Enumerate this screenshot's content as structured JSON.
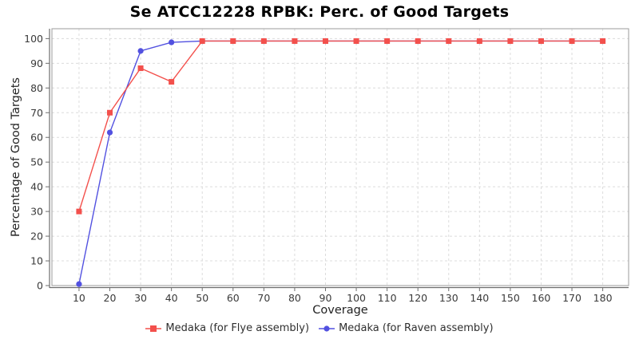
{
  "page": {
    "background": "#ffffff"
  },
  "palette": {
    "grid": "#dcdcdc",
    "border": "#9b9b9b",
    "axis": "#6e6e6e",
    "tick_text": "#3a3a3a",
    "title_text": "#000000",
    "axis_label_text": "#222222",
    "legend_text": "#2f2f2f"
  },
  "chart_data": {
    "type": "line",
    "title": "Se ATCC12228 RPBK: Perc. of Good Targets",
    "xlabel": "Coverage",
    "ylabel": "Percentage of Good Targets",
    "x": [
      10,
      20,
      30,
      40,
      50,
      60,
      70,
      80,
      90,
      100,
      110,
      120,
      130,
      140,
      150,
      160,
      170,
      180
    ],
    "series": [
      {
        "name": "Medaka (for Flye assembly)",
        "color": "#f3504c",
        "marker": "square",
        "values": [
          30,
          70,
          88,
          82.5,
          99,
          99,
          99,
          99,
          99,
          99,
          99,
          99,
          99,
          99,
          99,
          99,
          99,
          99
        ]
      },
      {
        "name": "Medaka (for Raven assembly)",
        "color": "#5251e0",
        "marker": "circle",
        "values": [
          0.6,
          62,
          95,
          98.5,
          99,
          99,
          99,
          99,
          99,
          99,
          99,
          99,
          99,
          99,
          99,
          99,
          99,
          99
        ]
      }
    ],
    "xticks": [
      10,
      20,
      30,
      40,
      50,
      60,
      70,
      80,
      90,
      100,
      110,
      120,
      130,
      140,
      150,
      160,
      170,
      180
    ],
    "yticks": [
      0,
      10,
      20,
      30,
      40,
      50,
      60,
      70,
      80,
      90,
      100
    ],
    "xlim": [
      1.2,
      188.4
    ],
    "ylim": [
      0,
      104
    ],
    "grid": true,
    "grid_style": "dashed",
    "legend_position": "bottom"
  }
}
